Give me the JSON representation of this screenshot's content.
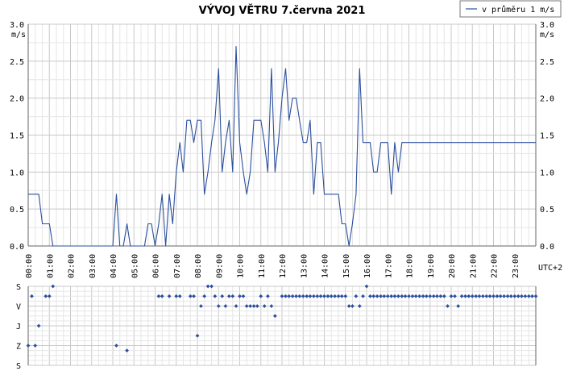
{
  "chart_data": [
    {
      "type": "line",
      "title": "VÝVOJ VĚTRU  7.června 2021",
      "unit_label": "m/s",
      "timezone_label": "UTC+2",
      "ylim": [
        0,
        3.0
      ],
      "y_ticks": [
        "0.0",
        "0.5",
        "1.0",
        "1.5",
        "2.0",
        "2.5",
        "3.0"
      ],
      "x_range_hours": [
        0,
        24
      ],
      "x_tick_labels": [
        "00:00",
        "01:00",
        "02:00",
        "03:00",
        "04:00",
        "05:00",
        "06:00",
        "07:00",
        "08:00",
        "09:00",
        "10:00",
        "11:00",
        "12:00",
        "13:00",
        "14:00",
        "15:00",
        "16:00",
        "17:00",
        "18:00",
        "19:00",
        "20:00",
        "21:00",
        "22:00",
        "23:00"
      ],
      "grid": true,
      "legend_position": "top-right",
      "series": [
        {
          "name": "v průměru 1 m/s",
          "color": "#2b4f9e",
          "x_hours": [
            0.0,
            0.17,
            0.33,
            0.5,
            0.67,
            0.83,
            1.0,
            1.17,
            1.33,
            1.5,
            1.67,
            1.83,
            2.0,
            2.17,
            2.33,
            2.5,
            2.67,
            2.83,
            3.0,
            3.17,
            3.33,
            3.5,
            3.67,
            3.83,
            4.0,
            4.17,
            4.33,
            4.5,
            4.67,
            4.83,
            5.0,
            5.17,
            5.33,
            5.5,
            5.67,
            5.83,
            6.0,
            6.17,
            6.33,
            6.5,
            6.67,
            6.83,
            7.0,
            7.17,
            7.33,
            7.5,
            7.67,
            7.83,
            8.0,
            8.17,
            8.33,
            8.5,
            8.67,
            8.83,
            9.0,
            9.17,
            9.33,
            9.5,
            9.67,
            9.83,
            10.0,
            10.17,
            10.33,
            10.5,
            10.67,
            10.83,
            11.0,
            11.17,
            11.33,
            11.5,
            11.67,
            11.83,
            12.0,
            12.17,
            12.33,
            12.5,
            12.67,
            12.83,
            13.0,
            13.17,
            13.33,
            13.5,
            13.67,
            13.83,
            14.0,
            14.17,
            14.33,
            14.5,
            14.67,
            14.83,
            15.0,
            15.17,
            15.33,
            15.5,
            15.67,
            15.83,
            16.0,
            16.17,
            16.33,
            16.5,
            16.67,
            16.83,
            17.0,
            17.17,
            17.33,
            17.5,
            17.67,
            17.83,
            18.0,
            18.17,
            18.33,
            18.5,
            18.67,
            18.83,
            19.0,
            19.17,
            19.33,
            19.5,
            19.67,
            19.83,
            20.0,
            20.17,
            20.33,
            20.5,
            20.67,
            20.83,
            21.0,
            21.17,
            21.33,
            21.5,
            21.67,
            21.83,
            22.0,
            22.17,
            22.33,
            22.5,
            22.67,
            22.83,
            23.0,
            23.17,
            23.33,
            23.5,
            23.67,
            23.83,
            24.0
          ],
          "values": [
            0.7,
            0.7,
            0.7,
            0.7,
            0.3,
            0.3,
            0.3,
            0.0,
            0.0,
            0.0,
            0.0,
            0.0,
            0.0,
            0.0,
            0.0,
            0.0,
            0.0,
            0.0,
            0.0,
            0.0,
            0.0,
            0.0,
            0.0,
            0.0,
            0.0,
            0.7,
            0.0,
            0.0,
            0.3,
            0.0,
            0.0,
            0.0,
            0.0,
            0.0,
            0.3,
            0.3,
            0.0,
            0.3,
            0.7,
            0.0,
            0.7,
            0.3,
            1.0,
            1.4,
            1.0,
            1.7,
            1.7,
            1.4,
            1.7,
            1.7,
            0.7,
            1.0,
            1.4,
            1.7,
            2.4,
            1.0,
            1.4,
            1.7,
            1.0,
            2.7,
            1.4,
            1.0,
            0.7,
            1.0,
            1.7,
            1.7,
            1.7,
            1.4,
            1.0,
            2.4,
            1.0,
            1.4,
            2.0,
            2.4,
            1.7,
            2.0,
            2.0,
            1.7,
            1.4,
            1.4,
            1.7,
            0.7,
            1.4,
            1.4,
            0.7,
            0.7,
            0.7,
            0.7,
            0.7,
            0.3,
            0.3,
            0.0,
            0.3,
            0.7,
            2.4,
            1.4,
            1.4,
            1.4,
            1.0,
            1.0,
            1.4,
            1.4,
            1.4,
            0.7,
            1.4,
            1.0,
            1.4,
            1.4,
            1.4,
            1.4,
            1.4,
            1.4,
            1.4,
            1.4,
            1.4,
            1.4,
            1.4,
            1.4,
            1.4,
            1.4,
            1.4,
            1.4,
            1.4,
            1.4,
            1.4,
            1.4,
            1.4,
            1.4,
            1.4,
            1.4,
            1.4,
            1.4,
            1.4,
            1.4,
            1.4,
            1.4,
            1.4,
            1.4,
            1.4,
            1.4,
            1.4,
            1.4,
            1.4,
            1.4,
            1.4
          ]
        }
      ]
    },
    {
      "type": "scatter",
      "y_categories": [
        "S",
        "V",
        "J",
        "Z",
        "S"
      ],
      "x_range_hours": [
        0,
        24
      ],
      "grid": true,
      "series": [
        {
          "color": "#2b4f9e",
          "points": [
            {
              "x": 0.0,
              "dir": "Z"
            },
            {
              "x": 0.17,
              "dir": "SV"
            },
            {
              "x": 0.33,
              "dir": "Z"
            },
            {
              "x": 0.5,
              "dir": "J"
            },
            {
              "x": 0.83,
              "dir": "SV"
            },
            {
              "x": 1.0,
              "dir": "SV"
            },
            {
              "x": 1.17,
              "dir": "S"
            },
            {
              "x": 4.17,
              "dir": "Z"
            },
            {
              "x": 4.67,
              "dir": "ZJ"
            },
            {
              "x": 6.17,
              "dir": "SV"
            },
            {
              "x": 6.33,
              "dir": "SV"
            },
            {
              "x": 6.67,
              "dir": "SV"
            },
            {
              "x": 7.0,
              "dir": "SV"
            },
            {
              "x": 7.17,
              "dir": "SV"
            },
            {
              "x": 7.67,
              "dir": "SV"
            },
            {
              "x": 7.83,
              "dir": "SV"
            },
            {
              "x": 8.0,
              "dir": "JZ"
            },
            {
              "x": 8.17,
              "dir": "V"
            },
            {
              "x": 8.33,
              "dir": "SV"
            },
            {
              "x": 8.5,
              "dir": "S"
            },
            {
              "x": 8.67,
              "dir": "S"
            },
            {
              "x": 8.83,
              "dir": "SV"
            },
            {
              "x": 9.0,
              "dir": "V"
            },
            {
              "x": 9.17,
              "dir": "SV"
            },
            {
              "x": 9.33,
              "dir": "V"
            },
            {
              "x": 9.5,
              "dir": "SV"
            },
            {
              "x": 9.67,
              "dir": "SV"
            },
            {
              "x": 9.83,
              "dir": "V"
            },
            {
              "x": 10.0,
              "dir": "SV"
            },
            {
              "x": 10.17,
              "dir": "SV"
            },
            {
              "x": 10.33,
              "dir": "V"
            },
            {
              "x": 10.5,
              "dir": "V"
            },
            {
              "x": 10.67,
              "dir": "V"
            },
            {
              "x": 10.83,
              "dir": "V"
            },
            {
              "x": 11.0,
              "dir": "SV"
            },
            {
              "x": 11.17,
              "dir": "V"
            },
            {
              "x": 11.33,
              "dir": "SV"
            },
            {
              "x": 11.5,
              "dir": "V"
            },
            {
              "x": 11.67,
              "dir": "VJ"
            },
            {
              "x": 12.0,
              "dir": "SV"
            },
            {
              "x": 12.17,
              "dir": "SV"
            },
            {
              "x": 12.33,
              "dir": "SV"
            },
            {
              "x": 12.5,
              "dir": "SV"
            },
            {
              "x": 12.67,
              "dir": "SV"
            },
            {
              "x": 12.83,
              "dir": "SV"
            },
            {
              "x": 13.0,
              "dir": "SV"
            },
            {
              "x": 13.17,
              "dir": "SV"
            },
            {
              "x": 13.33,
              "dir": "SV"
            },
            {
              "x": 13.5,
              "dir": "SV"
            },
            {
              "x": 13.67,
              "dir": "SV"
            },
            {
              "x": 13.83,
              "dir": "SV"
            },
            {
              "x": 14.0,
              "dir": "SV"
            },
            {
              "x": 14.17,
              "dir": "SV"
            },
            {
              "x": 14.33,
              "dir": "SV"
            },
            {
              "x": 14.5,
              "dir": "SV"
            },
            {
              "x": 14.67,
              "dir": "SV"
            },
            {
              "x": 14.83,
              "dir": "SV"
            },
            {
              "x": 15.0,
              "dir": "SV"
            },
            {
              "x": 15.17,
              "dir": "V"
            },
            {
              "x": 15.33,
              "dir": "V"
            },
            {
              "x": 15.5,
              "dir": "SV"
            },
            {
              "x": 15.67,
              "dir": "V"
            },
            {
              "x": 15.83,
              "dir": "SV"
            },
            {
              "x": 16.0,
              "dir": "S"
            },
            {
              "x": 16.17,
              "dir": "SV"
            },
            {
              "x": 16.33,
              "dir": "SV"
            },
            {
              "x": 16.5,
              "dir": "SV"
            },
            {
              "x": 16.67,
              "dir": "SV"
            },
            {
              "x": 16.83,
              "dir": "SV"
            },
            {
              "x": 17.0,
              "dir": "SV"
            },
            {
              "x": 17.17,
              "dir": "SV"
            },
            {
              "x": 17.33,
              "dir": "SV"
            },
            {
              "x": 17.5,
              "dir": "SV"
            },
            {
              "x": 17.67,
              "dir": "SV"
            },
            {
              "x": 17.83,
              "dir": "SV"
            },
            {
              "x": 18.0,
              "dir": "SV"
            },
            {
              "x": 18.17,
              "dir": "SV"
            },
            {
              "x": 18.33,
              "dir": "SV"
            },
            {
              "x": 18.5,
              "dir": "SV"
            },
            {
              "x": 18.67,
              "dir": "SV"
            },
            {
              "x": 18.83,
              "dir": "SV"
            },
            {
              "x": 19.0,
              "dir": "SV"
            },
            {
              "x": 19.17,
              "dir": "SV"
            },
            {
              "x": 19.33,
              "dir": "SV"
            },
            {
              "x": 19.5,
              "dir": "SV"
            },
            {
              "x": 19.67,
              "dir": "SV"
            },
            {
              "x": 19.83,
              "dir": "V"
            },
            {
              "x": 20.0,
              "dir": "SV"
            },
            {
              "x": 20.17,
              "dir": "SV"
            },
            {
              "x": 20.33,
              "dir": "V"
            },
            {
              "x": 20.5,
              "dir": "SV"
            },
            {
              "x": 20.67,
              "dir": "SV"
            },
            {
              "x": 20.83,
              "dir": "SV"
            },
            {
              "x": 21.0,
              "dir": "SV"
            },
            {
              "x": 21.17,
              "dir": "SV"
            },
            {
              "x": 21.33,
              "dir": "SV"
            },
            {
              "x": 21.5,
              "dir": "SV"
            },
            {
              "x": 21.67,
              "dir": "SV"
            },
            {
              "x": 21.83,
              "dir": "SV"
            },
            {
              "x": 22.0,
              "dir": "SV"
            },
            {
              "x": 22.17,
              "dir": "SV"
            },
            {
              "x": 22.33,
              "dir": "SV"
            },
            {
              "x": 22.5,
              "dir": "SV"
            },
            {
              "x": 22.67,
              "dir": "SV"
            },
            {
              "x": 22.83,
              "dir": "SV"
            },
            {
              "x": 23.0,
              "dir": "SV"
            },
            {
              "x": 23.17,
              "dir": "SV"
            },
            {
              "x": 23.33,
              "dir": "SV"
            },
            {
              "x": 23.5,
              "dir": "SV"
            },
            {
              "x": 23.67,
              "dir": "SV"
            },
            {
              "x": 23.83,
              "dir": "SV"
            },
            {
              "x": 24.0,
              "dir": "SV"
            }
          ]
        }
      ]
    }
  ]
}
